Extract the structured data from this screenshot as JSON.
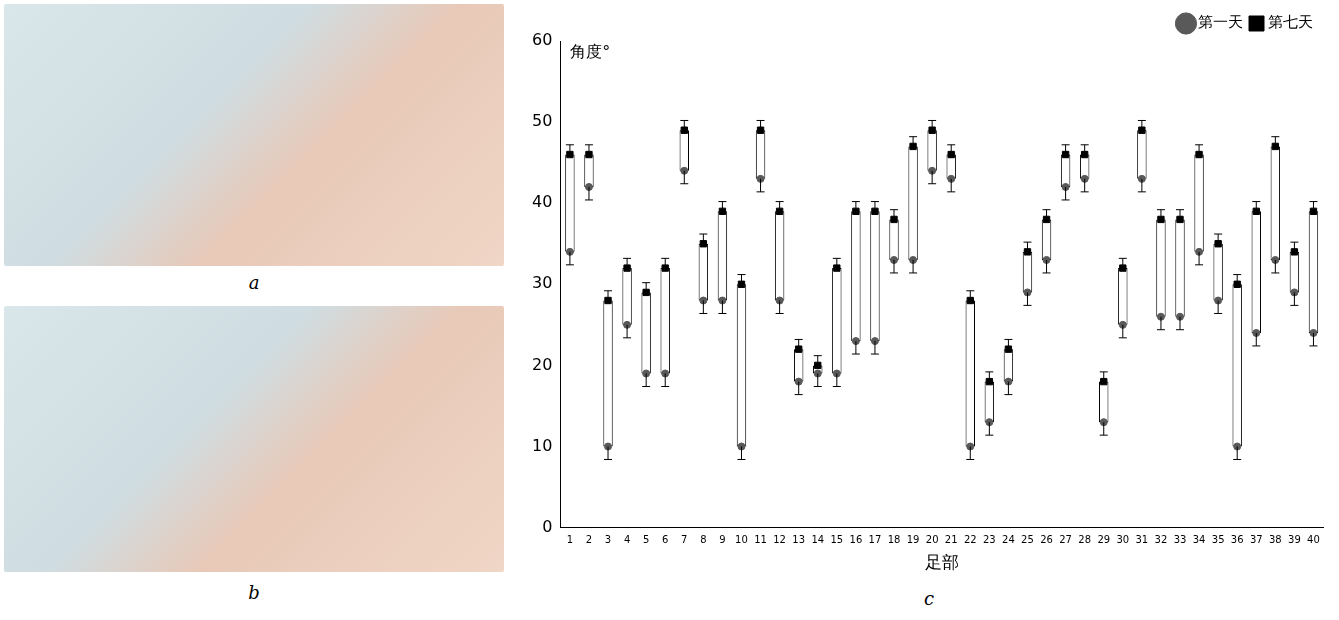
{
  "panel_labels": [
    "a",
    "b",
    "c"
  ],
  "chart_data": {
    "type": "floating_bar",
    "y_label": "角度°",
    "x_label": "足部",
    "categories": [
      "1",
      "2",
      "3",
      "4",
      "5",
      "6",
      "7",
      "8",
      "9",
      "10",
      "11",
      "12",
      "13",
      "14",
      "15",
      "16",
      "17",
      "18",
      "19",
      "20",
      "21",
      "22",
      "23",
      "24",
      "25",
      "26",
      "27",
      "28",
      "29",
      "30",
      "31",
      "32",
      "33",
      "34",
      "35",
      "36",
      "37",
      "38",
      "39",
      "40"
    ],
    "ylim": [
      0,
      60
    ],
    "yticks": [
      0,
      10,
      20,
      30,
      40,
      50,
      60
    ],
    "grid": false,
    "legend": "top-right",
    "series": [
      {
        "name": "第一天",
        "color": "#595959",
        "marker": "circle",
        "values": [
          34,
          42,
          10,
          25,
          19,
          19,
          44,
          28,
          28,
          10,
          43,
          28,
          18,
          19,
          19,
          23,
          23,
          33,
          33,
          44,
          43,
          10,
          13,
          18,
          29,
          33,
          42,
          43,
          13,
          25,
          43,
          26,
          26,
          34,
          28,
          10,
          24,
          33,
          29,
          24
        ],
        "errors": [
          1.6,
          1.6,
          1.6,
          1.6,
          1.6,
          1.6,
          1.6,
          1.6,
          1.6,
          1.6,
          1.6,
          1.6,
          1.6,
          1.6,
          1.6,
          1.6,
          1.6,
          1.6,
          1.6,
          1.6,
          1.6,
          1.6,
          1.6,
          1.6,
          1.6,
          1.6,
          1.6,
          1.6,
          1.6,
          1.6,
          1.6,
          1.6,
          1.6,
          1.6,
          1.6,
          1.6,
          1.6,
          1.6,
          1.6,
          1.6
        ]
      },
      {
        "name": "第七天",
        "color": "#000000",
        "marker": "square",
        "values": [
          46,
          46,
          28,
          32,
          29,
          32,
          49,
          35,
          39,
          30,
          49,
          39,
          22,
          20,
          32,
          39,
          39,
          38,
          47,
          49,
          46,
          28,
          18,
          22,
          34,
          38,
          46,
          46,
          18,
          32,
          49,
          38,
          38,
          46,
          35,
          30,
          39,
          47,
          34,
          39
        ],
        "errors": [
          1.2,
          1.2,
          1.2,
          1.2,
          1.2,
          1.2,
          1.2,
          1.2,
          1.2,
          1.2,
          1.2,
          1.2,
          1.2,
          1.2,
          1.2,
          1.2,
          1.2,
          1.2,
          1.2,
          1.2,
          1.2,
          1.2,
          1.2,
          1.2,
          1.2,
          1.2,
          1.2,
          1.2,
          1.2,
          1.2,
          1.2,
          1.2,
          1.2,
          1.2,
          1.2,
          1.2,
          1.2,
          1.2,
          1.2,
          1.2
        ]
      }
    ]
  }
}
